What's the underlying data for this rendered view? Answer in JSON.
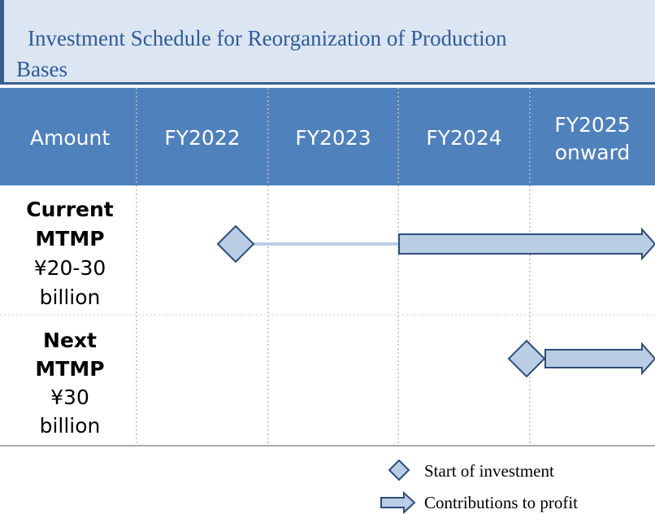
{
  "header": {
    "title": [
      "Investment Schedule for Reorganization of Production",
      "Bases"
    ]
  },
  "table": {
    "columns": [
      [
        "Amount"
      ],
      [
        "FY2022"
      ],
      [
        "FY2023"
      ],
      [
        "FY2024"
      ],
      [
        "FY2025",
        "onward"
      ]
    ],
    "rows": [
      {
        "name": [
          "Current",
          "MTMP"
        ],
        "amount": [
          "¥20-30",
          "billion"
        ]
      },
      {
        "name": [
          "Next",
          "MTMP"
        ],
        "amount": [
          "¥30",
          "billion"
        ]
      }
    ]
  },
  "legend": [
    "Start of investment",
    "Contributions to profit"
  ]
}
